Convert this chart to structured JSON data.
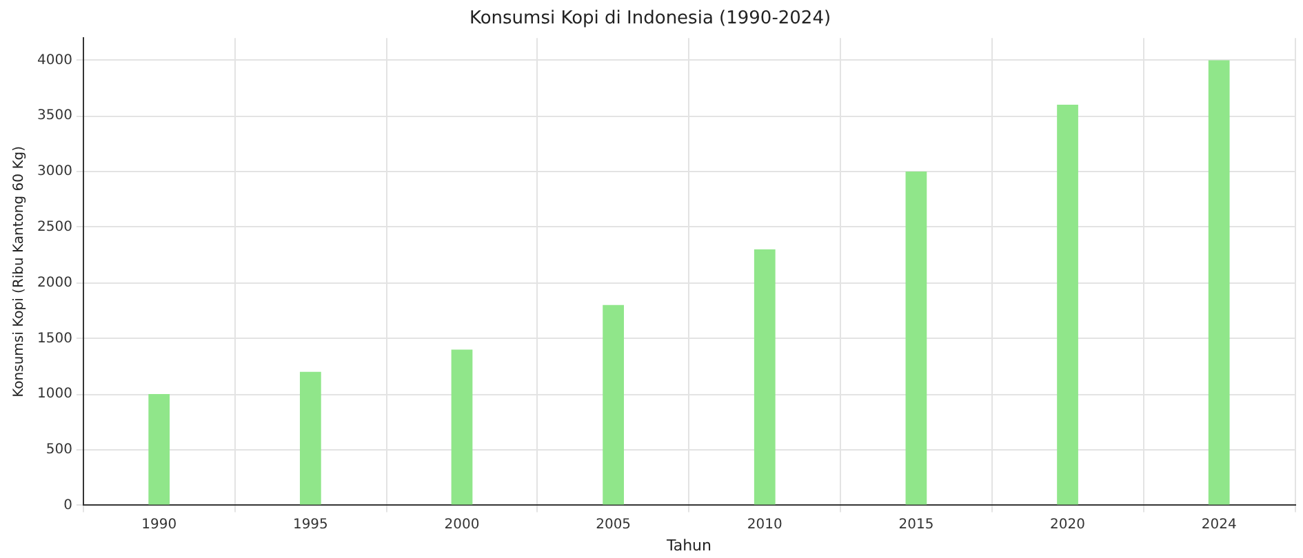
{
  "chart_data": {
    "type": "bar",
    "title": "Konsumsi Kopi di Indonesia (1990-2024)",
    "xlabel": "Tahun",
    "ylabel": "Konsumsi Kopi (Ribu Kantong 60 Kg)",
    "categories": [
      "1990",
      "1995",
      "2000",
      "2005",
      "2010",
      "2015",
      "2020",
      "2024"
    ],
    "values": [
      1000,
      1200,
      1400,
      1800,
      2300,
      3000,
      3600,
      4000
    ],
    "color": "#90e68a",
    "ylim": [
      0,
      4200
    ],
    "yticks": [
      0,
      500,
      1000,
      1500,
      2000,
      2500,
      3000,
      3500,
      4000
    ],
    "grid": true
  }
}
